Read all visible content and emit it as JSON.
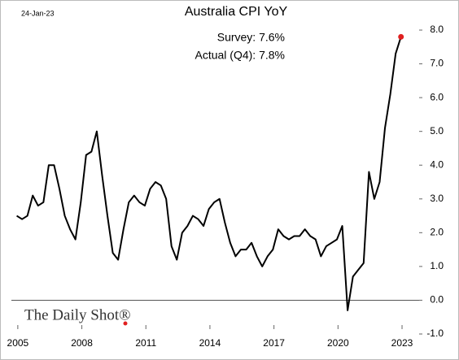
{
  "chart_data": {
    "type": "line",
    "title": "Australia CPI YoY",
    "date_note": "24-Jan-23",
    "annotations": [
      "Survey:  7.6%",
      "Actual (Q4):  7.8%"
    ],
    "watermark": "The Daily Shot®",
    "x": [
      2004.95,
      2005.2,
      2005.45,
      2005.7,
      2005.95,
      2006.2,
      2006.45,
      2006.7,
      2006.95,
      2007.2,
      2007.45,
      2007.7,
      2007.95,
      2008.2,
      2008.45,
      2008.7,
      2008.95,
      2009.2,
      2009.45,
      2009.7,
      2009.95,
      2010.2,
      2010.45,
      2010.7,
      2010.95,
      2011.2,
      2011.45,
      2011.7,
      2011.95,
      2012.2,
      2012.45,
      2012.7,
      2012.95,
      2013.2,
      2013.45,
      2013.7,
      2013.95,
      2014.2,
      2014.45,
      2014.7,
      2014.95,
      2015.2,
      2015.45,
      2015.7,
      2015.95,
      2016.2,
      2016.45,
      2016.7,
      2016.95,
      2017.2,
      2017.45,
      2017.7,
      2017.95,
      2018.2,
      2018.45,
      2018.7,
      2018.95,
      2019.2,
      2019.45,
      2019.7,
      2019.95,
      2020.2,
      2020.45,
      2020.7,
      2020.95,
      2021.2,
      2021.45,
      2021.7,
      2021.95,
      2022.2,
      2022.45,
      2022.7,
      2022.95
    ],
    "series": [
      {
        "color": "#000000",
        "highlight_color": "#e02020",
        "values": [
          2.5,
          2.4,
          2.5,
          3.1,
          2.8,
          2.9,
          4.0,
          4.0,
          3.3,
          2.5,
          2.1,
          1.8,
          2.9,
          4.3,
          4.4,
          5.0,
          3.7,
          2.5,
          1.4,
          1.2,
          2.1,
          2.9,
          3.1,
          2.9,
          2.8,
          3.3,
          3.5,
          3.4,
          3.0,
          1.6,
          1.2,
          2.0,
          2.2,
          2.5,
          2.4,
          2.2,
          2.7,
          2.9,
          3.0,
          2.3,
          1.7,
          1.3,
          1.5,
          1.5,
          1.7,
          1.3,
          1.0,
          1.3,
          1.5,
          2.1,
          1.9,
          1.8,
          1.9,
          1.9,
          2.1,
          1.9,
          1.8,
          1.3,
          1.6,
          1.7,
          1.8,
          2.2,
          -0.3,
          0.7,
          0.9,
          1.1,
          3.8,
          3.0,
          3.5,
          5.1,
          6.1,
          7.3,
          7.8
        ]
      }
    ],
    "xlim": [
      2004.7,
      2023.8
    ],
    "xticks": [
      2005,
      2008,
      2011,
      2014,
      2017,
      2020,
      2023
    ],
    "ylim": [
      -1.2,
      8.4
    ],
    "yticks": [
      {
        "value": -1,
        "label": "-1.0"
      },
      {
        "value": 0,
        "label": "0.0"
      },
      {
        "value": 1,
        "label": "1.0"
      },
      {
        "value": 2,
        "label": "2.0"
      },
      {
        "value": 3,
        "label": "3.0"
      },
      {
        "value": 4,
        "label": "4.0"
      },
      {
        "value": 5,
        "label": "5.0"
      },
      {
        "value": 6,
        "label": "6.0"
      },
      {
        "value": 7,
        "label": "7.0"
      },
      {
        "value": 8,
        "label": "8.0"
      }
    ],
    "zero_line": true
  }
}
